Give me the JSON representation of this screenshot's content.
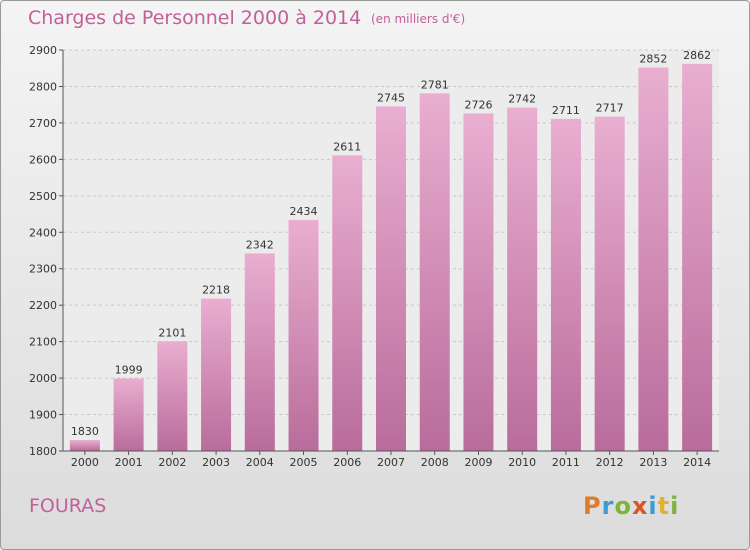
{
  "header": {
    "title": "Charges de Personnel 2000 à 2014",
    "subtitle": "(en milliers d'€)"
  },
  "footer": {
    "location": "FOURAS",
    "logo_text": "Proxiti",
    "logo_colors": [
      "#e07b27",
      "#3d9bd6",
      "#7fb43a",
      "#d9542a",
      "#3d9bd6",
      "#e0b22a",
      "#7fb43a"
    ]
  },
  "chart_data": {
    "type": "bar",
    "categories": [
      "2000",
      "2001",
      "2002",
      "2003",
      "2004",
      "2005",
      "2006",
      "2007",
      "2008",
      "2009",
      "2010",
      "2011",
      "2012",
      "2013",
      "2014"
    ],
    "values": [
      1830,
      1999,
      2101,
      2218,
      2342,
      2434,
      2611,
      2745,
      2781,
      2726,
      2742,
      2711,
      2717,
      2852,
      2862
    ],
    "title": "Charges de Personnel 2000 à 2014",
    "subtitle": "(en milliers d'€)",
    "ylim": [
      1800,
      2900
    ],
    "yticks": [
      1800,
      1900,
      2000,
      2100,
      2200,
      2300,
      2400,
      2500,
      2600,
      2700,
      2800,
      2900
    ],
    "grid": true,
    "bar_color": "#c87aab"
  }
}
